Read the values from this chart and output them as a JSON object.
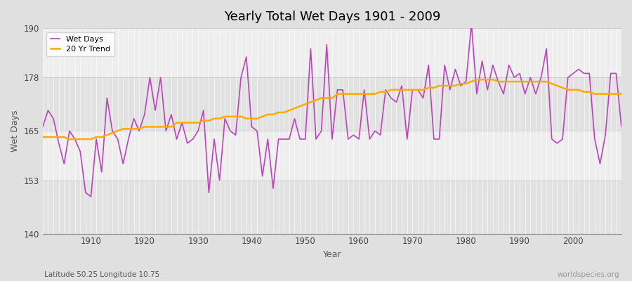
{
  "title": "Yearly Total Wet Days 1901 - 2009",
  "xlabel": "Year",
  "ylabel": "Wet Days",
  "footnote_left": "Latitude 50.25 Longitude 10.75",
  "footnote_right": "worldspecies.org",
  "ylim": [
    140,
    190
  ],
  "yticks": [
    140,
    153,
    165,
    178,
    190
  ],
  "start_year": 1901,
  "end_year": 2009,
  "wet_days_color": "#bb44bb",
  "trend_color": "#ffaa00",
  "bg_color": "#e0e0e0",
  "plot_bg_light": "#eeeeee",
  "plot_bg_dark": "#e2e2e2",
  "wet_days": [
    166,
    170,
    168,
    162,
    157,
    165,
    163,
    160,
    150,
    149,
    163,
    155,
    173,
    165,
    163,
    157,
    163,
    168,
    165,
    169,
    178,
    170,
    178,
    165,
    169,
    163,
    167,
    162,
    163,
    165,
    170,
    150,
    163,
    153,
    168,
    165,
    164,
    178,
    183,
    166,
    165,
    154,
    163,
    151,
    163,
    163,
    163,
    168,
    163,
    163,
    185,
    163,
    165,
    186,
    163,
    175,
    175,
    163,
    164,
    163,
    175,
    163,
    165,
    164,
    175,
    173,
    172,
    176,
    163,
    175,
    175,
    173,
    181,
    163,
    163,
    181,
    175,
    180,
    176,
    177,
    191,
    174,
    182,
    175,
    181,
    177,
    174,
    181,
    178,
    179,
    174,
    178,
    174,
    178,
    185,
    163,
    162,
    163,
    178,
    179,
    180,
    179,
    179,
    163,
    157,
    164,
    179,
    179,
    166
  ],
  "trend": [
    163.5,
    163.5,
    163.5,
    163.5,
    163.5,
    163.0,
    163.0,
    163.0,
    163.0,
    163.0,
    163.5,
    163.5,
    164.0,
    164.5,
    165.0,
    165.5,
    165.5,
    165.5,
    165.5,
    166.0,
    166.0,
    166.0,
    166.0,
    166.0,
    166.0,
    167.0,
    167.0,
    167.0,
    167.0,
    167.0,
    167.5,
    167.5,
    168.0,
    168.0,
    168.5,
    168.5,
    168.5,
    168.5,
    168.0,
    168.0,
    168.0,
    168.5,
    169.0,
    169.0,
    169.5,
    169.5,
    170.0,
    170.5,
    171.0,
    171.5,
    172.0,
    172.5,
    173.0,
    173.0,
    173.0,
    174.0,
    174.0,
    174.0,
    174.0,
    174.0,
    174.0,
    174.0,
    174.0,
    174.5,
    174.5,
    175.0,
    175.0,
    175.0,
    175.0,
    175.0,
    175.0,
    175.0,
    175.5,
    175.5,
    176.0,
    176.0,
    176.0,
    176.0,
    176.5,
    176.5,
    177.0,
    177.5,
    177.5,
    177.5,
    177.5,
    177.0,
    177.0,
    177.0,
    177.0,
    177.0,
    177.0,
    177.0,
    177.0,
    177.0,
    177.0,
    176.5,
    176.0,
    175.5,
    175.0,
    175.0,
    175.0,
    174.5,
    174.5,
    174.0,
    174.0,
    174.0,
    174.0,
    174.0,
    174.0
  ]
}
